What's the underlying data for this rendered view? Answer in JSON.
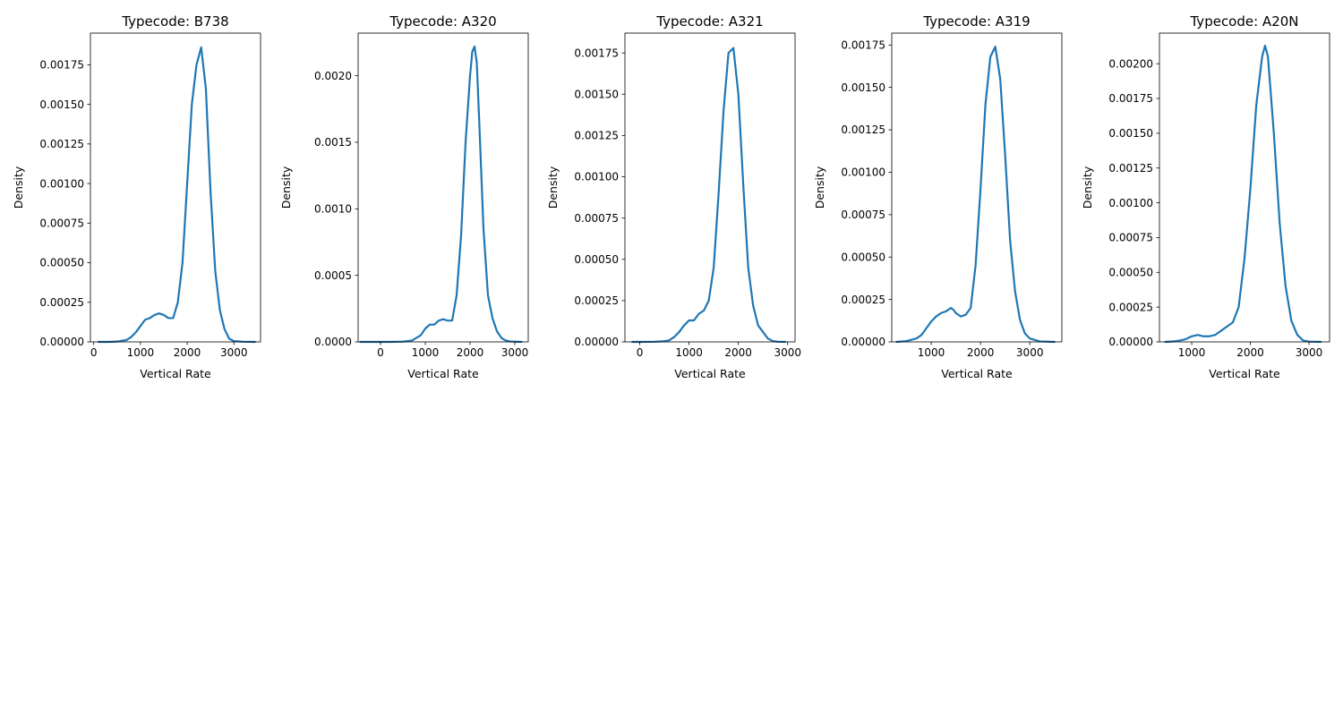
{
  "chart_data": [
    {
      "type": "line",
      "title": "Typecode: B738",
      "xlabel": "Vertical Rate",
      "ylabel": "Density",
      "xlim": [
        -70,
        3570
      ],
      "ylim": [
        0,
        0.00195
      ],
      "xticks": [
        0,
        1000,
        2000,
        3000
      ],
      "yticks": [
        0,
        0.00025,
        0.0005,
        0.00075,
        0.001,
        0.00125,
        0.0015,
        0.00175
      ],
      "ytick_labels": [
        "0.00000",
        "0.00025",
        "0.00050",
        "0.00075",
        "0.00100",
        "0.00125",
        "0.00150",
        "0.00175"
      ],
      "grid": false,
      "series": [
        {
          "color": "#1f77b4",
          "x": [
            100,
            300,
            500,
            700,
            800,
            900,
            1000,
            1100,
            1200,
            1300,
            1400,
            1450,
            1500,
            1600,
            1700,
            1800,
            1900,
            2000,
            2100,
            2200,
            2300,
            2400,
            2500,
            2600,
            2700,
            2800,
            2900,
            3000,
            3200,
            3450
          ],
          "y": [
            0,
            0,
            2e-06,
            1.2e-05,
            3e-05,
            6e-05,
            0.0001,
            0.00014,
            0.00015,
            0.00017,
            0.00018,
            0.000175,
            0.00017,
            0.00015,
            0.00015,
            0.00025,
            0.0005,
            0.001,
            0.0015,
            0.00175,
            0.00186,
            0.0016,
            0.00095,
            0.00045,
            0.0002,
            8e-05,
            2e-05,
            5e-06,
            1e-06,
            0
          ]
        }
      ]
    },
    {
      "type": "line",
      "title": "Typecode: A320",
      "xlabel": "Vertical Rate",
      "ylabel": "Density",
      "xlim": [
        -500,
        3300
      ],
      "ylim": [
        0,
        0.00232
      ],
      "xticks": [
        0,
        1000,
        2000,
        3000
      ],
      "yticks": [
        0,
        0.0005,
        0.001,
        0.0015,
        0.002
      ],
      "ytick_labels": [
        "0.0000",
        "0.0005",
        "0.0010",
        "0.0015",
        "0.0020"
      ],
      "grid": false,
      "series": [
        {
          "color": "#1f77b4",
          "x": [
            -450,
            -200,
            200,
            500,
            700,
            800,
            900,
            1000,
            1100,
            1200,
            1300,
            1400,
            1500,
            1600,
            1700,
            1800,
            1900,
            2000,
            2050,
            2100,
            2150,
            2200,
            2300,
            2400,
            2500,
            2600,
            2700,
            2800,
            2900,
            3150
          ],
          "y": [
            0,
            0,
            0,
            2e-06,
            1e-05,
            3e-05,
            5e-05,
            0.0001,
            0.00013,
            0.00013,
            0.00016,
            0.00017,
            0.00016,
            0.00016,
            0.00035,
            0.0008,
            0.0015,
            0.002,
            0.00218,
            0.00222,
            0.0021,
            0.0017,
            0.00085,
            0.00035,
            0.00018,
            8e-05,
            3e-05,
            1e-05,
            3e-06,
            0
          ]
        }
      ]
    },
    {
      "type": "line",
      "title": "Typecode: A321",
      "xlabel": "Vertical Rate",
      "ylabel": "Density",
      "xlim": [
        -300,
        3150
      ],
      "ylim": [
        0,
        0.00187
      ],
      "xticks": [
        0,
        1000,
        2000,
        3000
      ],
      "yticks": [
        0,
        0.00025,
        0.0005,
        0.00075,
        0.001,
        0.00125,
        0.0015,
        0.00175
      ],
      "ytick_labels": [
        "0.00000",
        "0.00025",
        "0.00050",
        "0.00075",
        "0.00100",
        "0.00125",
        "0.00150",
        "0.00175"
      ],
      "grid": false,
      "series": [
        {
          "color": "#1f77b4",
          "x": [
            -150,
            0,
            300,
            500,
            600,
            700,
            800,
            900,
            1000,
            1100,
            1200,
            1300,
            1400,
            1500,
            1600,
            1700,
            1800,
            1900,
            2000,
            2100,
            2200,
            2300,
            2400,
            2500,
            2600,
            2700,
            2800,
            2950
          ],
          "y": [
            0,
            0,
            1e-06,
            4e-06,
            1e-05,
            3e-05,
            6e-05,
            0.0001,
            0.00013,
            0.00013,
            0.00017,
            0.00019,
            0.00025,
            0.00045,
            0.0009,
            0.0014,
            0.00175,
            0.00178,
            0.0015,
            0.00095,
            0.00045,
            0.00022,
            0.0001,
            6e-05,
            2e-05,
            5e-06,
            1e-06,
            0
          ]
        }
      ]
    },
    {
      "type": "line",
      "title": "Typecode: A319",
      "xlabel": "Vertical Rate",
      "ylabel": "Density",
      "xlim": [
        200,
        3650
      ],
      "ylim": [
        0,
        0.00182
      ],
      "xticks": [
        1000,
        2000,
        3000
      ],
      "yticks": [
        0,
        0.00025,
        0.0005,
        0.00075,
        0.001,
        0.00125,
        0.0015,
        0.00175
      ],
      "ytick_labels": [
        "0.00000",
        "0.00025",
        "0.00050",
        "0.00075",
        "0.00100",
        "0.00125",
        "0.00150",
        "0.00175"
      ],
      "grid": false,
      "series": [
        {
          "color": "#1f77b4",
          "x": [
            300,
            500,
            700,
            800,
            900,
            1000,
            1100,
            1200,
            1300,
            1400,
            1450,
            1500,
            1600,
            1700,
            1800,
            1900,
            2000,
            2100,
            2200,
            2300,
            2400,
            2500,
            2600,
            2700,
            2800,
            2900,
            3000,
            3200,
            3500
          ],
          "y": [
            0,
            5e-06,
            2e-05,
            4e-05,
            8e-05,
            0.00012,
            0.00015,
            0.00017,
            0.00018,
            0.0002,
            0.00019,
            0.00017,
            0.00015,
            0.00016,
            0.0002,
            0.00045,
            0.0009,
            0.0014,
            0.00168,
            0.00174,
            0.00155,
            0.0011,
            0.0006,
            0.0003,
            0.00013,
            5e-05,
            2e-05,
            3e-06,
            0
          ]
        }
      ]
    },
    {
      "type": "line",
      "title": "Typecode: A20N",
      "xlabel": "Vertical Rate",
      "ylabel": "Density",
      "xlim": [
        450,
        3350
      ],
      "ylim": [
        0,
        0.00222
      ],
      "xticks": [
        1000,
        2000,
        3000
      ],
      "yticks": [
        0,
        0.00025,
        0.0005,
        0.00075,
        0.001,
        0.00125,
        0.0015,
        0.00175,
        0.002
      ],
      "ytick_labels": [
        "0.00000",
        "0.00025",
        "0.00050",
        "0.00075",
        "0.00100",
        "0.00125",
        "0.00150",
        "0.00175",
        "0.00200"
      ],
      "grid": false,
      "series": [
        {
          "color": "#1f77b4",
          "x": [
            550,
            700,
            800,
            900,
            1000,
            1100,
            1200,
            1300,
            1400,
            1500,
            1600,
            1700,
            1800,
            1900,
            2000,
            2100,
            2200,
            2250,
            2300,
            2400,
            2500,
            2600,
            2700,
            2800,
            2900,
            3000,
            3200
          ],
          "y": [
            0,
            4e-06,
            1e-05,
            2e-05,
            4e-05,
            5e-05,
            4e-05,
            4e-05,
            5e-05,
            8e-05,
            0.00011,
            0.00014,
            0.00025,
            0.0006,
            0.0011,
            0.0017,
            0.00205,
            0.00213,
            0.00205,
            0.0015,
            0.00085,
            0.0004,
            0.00015,
            5e-05,
            1e-05,
            2e-06,
            0
          ]
        }
      ]
    }
  ]
}
